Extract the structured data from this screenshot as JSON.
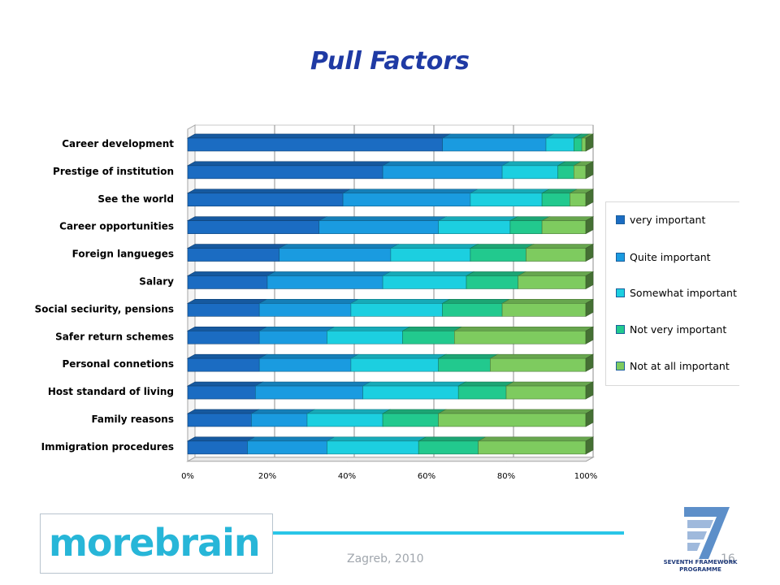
{
  "slide": {
    "title": "Pull Factors",
    "footer_text": "Zagreb, 2010",
    "page_number": "16",
    "logo_left": "morebrain",
    "logo_right_line1": "SEVENTH FRAMEWORK",
    "logo_right_line2": "PROGRAMME"
  },
  "colors": {
    "very_important": "#1b6cc2",
    "quite_important": "#1a9be0",
    "somewhat_important": "#1ccfe0",
    "not_very_important": "#22c98e",
    "not_at_all_important": "#7ecb5f",
    "title": "#1f3aa4",
    "logo": "#27b6d8"
  },
  "chart_data": {
    "type": "bar",
    "orientation": "horizontal",
    "stacked": "percent",
    "categories": [
      "Career development",
      "Prestige of institution",
      "See the world",
      "Career opportunities",
      "Foreign langueges",
      "Salary",
      "Social seciurity, pensions",
      "Safer return schemes",
      "Personal connetions",
      "Host standard of living",
      "Family reasons",
      "Immigration procedures"
    ],
    "series": [
      {
        "name": "very important",
        "values": [
          64,
          49,
          39,
          33,
          23,
          20,
          18,
          18,
          18,
          17,
          16,
          15
        ]
      },
      {
        "name": "Quite important",
        "values": [
          26,
          30,
          32,
          30,
          28,
          29,
          23,
          17,
          23,
          27,
          14,
          20
        ]
      },
      {
        "name": "Somewhat important",
        "values": [
          7,
          14,
          18,
          18,
          20,
          21,
          23,
          19,
          22,
          24,
          19,
          23
        ]
      },
      {
        "name": "Not very important",
        "values": [
          2,
          4,
          7,
          8,
          14,
          13,
          15,
          13,
          13,
          12,
          14,
          15
        ]
      },
      {
        "name": "Not at all important",
        "values": [
          1,
          3,
          4,
          11,
          15,
          17,
          21,
          33,
          24,
          20,
          37,
          27
        ]
      }
    ],
    "xlim": [
      0,
      100
    ],
    "x_ticks": [
      "0%",
      "20%",
      "40%",
      "60%",
      "80%",
      "100%"
    ],
    "grid": true,
    "legend_position": "right"
  }
}
